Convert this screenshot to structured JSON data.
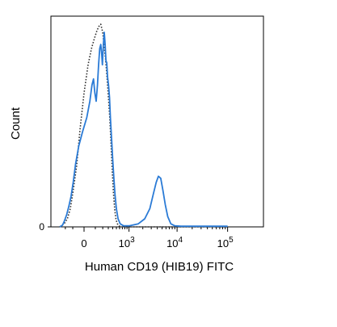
{
  "chart_data": {
    "type": "line",
    "title": "",
    "xlabel": "Human CD19 (HIB19) FITC",
    "ylabel": "Count",
    "x_scale": "biexponential",
    "x_ticks": [
      {
        "value": 0,
        "base": "0",
        "exp": ""
      },
      {
        "value": 1000,
        "base": "10",
        "exp": "3"
      },
      {
        "value": 10000,
        "base": "10",
        "exp": "4"
      },
      {
        "value": 100000,
        "base": "10",
        "exp": "5"
      }
    ],
    "y_ticks": [
      {
        "value": 0,
        "label": "0"
      }
    ],
    "ylim": [
      0,
      100
    ],
    "grid": false,
    "legend": "none",
    "series": [
      {
        "style": "dotted",
        "color": "#333333",
        "points": [
          [
            -300,
            0
          ],
          [
            -220,
            1.5
          ],
          [
            -170,
            4
          ],
          [
            -130,
            9
          ],
          [
            -95,
            18
          ],
          [
            -60,
            30
          ],
          [
            -30,
            48
          ],
          [
            0,
            66
          ],
          [
            30,
            80
          ],
          [
            60,
            88
          ],
          [
            90,
            93
          ],
          [
            120,
            97
          ],
          [
            145,
            99
          ],
          [
            170,
            100
          ],
          [
            200,
            96
          ],
          [
            225,
            89
          ],
          [
            250,
            82
          ],
          [
            275,
            74
          ],
          [
            300,
            65
          ],
          [
            330,
            54
          ],
          [
            360,
            41
          ],
          [
            390,
            27
          ],
          [
            420,
            16
          ],
          [
            455,
            8
          ],
          [
            490,
            3.5
          ],
          [
            530,
            1.5
          ],
          [
            580,
            0.5
          ],
          [
            650,
            0
          ],
          [
            1000,
            0
          ],
          [
            100000,
            0
          ]
        ]
      },
      {
        "style": "solid",
        "color": "#2b7bd6",
        "points": [
          [
            -300,
            0
          ],
          [
            -250,
            0.8
          ],
          [
            -220,
            2.5
          ],
          [
            -180,
            6
          ],
          [
            -150,
            10
          ],
          [
            -120,
            15
          ],
          [
            -95,
            22
          ],
          [
            -70,
            31
          ],
          [
            -40,
            40
          ],
          [
            -10,
            47
          ],
          [
            20,
            54
          ],
          [
            45,
            62
          ],
          [
            65,
            70
          ],
          [
            80,
            73
          ],
          [
            95,
            66
          ],
          [
            110,
            62
          ],
          [
            125,
            70
          ],
          [
            140,
            80
          ],
          [
            155,
            88
          ],
          [
            170,
            90
          ],
          [
            185,
            85
          ],
          [
            195,
            80
          ],
          [
            210,
            90
          ],
          [
            225,
            96
          ],
          [
            240,
            90
          ],
          [
            255,
            82
          ],
          [
            270,
            81
          ],
          [
            285,
            74
          ],
          [
            305,
            70
          ],
          [
            325,
            64
          ],
          [
            345,
            54
          ],
          [
            370,
            44
          ],
          [
            400,
            33
          ],
          [
            430,
            24
          ],
          [
            460,
            16
          ],
          [
            500,
            9
          ],
          [
            550,
            4
          ],
          [
            620,
            1.5
          ],
          [
            750,
            0.5
          ],
          [
            1000,
            0.5
          ],
          [
            1600,
            1.5
          ],
          [
            2200,
            4
          ],
          [
            2800,
            9
          ],
          [
            3300,
            16
          ],
          [
            3800,
            22
          ],
          [
            4200,
            25
          ],
          [
            4700,
            24
          ],
          [
            5200,
            18
          ],
          [
            5800,
            11
          ],
          [
            6500,
            5
          ],
          [
            7500,
            1.5
          ],
          [
            9000,
            0.5
          ],
          [
            12000,
            0.3
          ],
          [
            100000,
            0.3
          ]
        ]
      }
    ]
  }
}
